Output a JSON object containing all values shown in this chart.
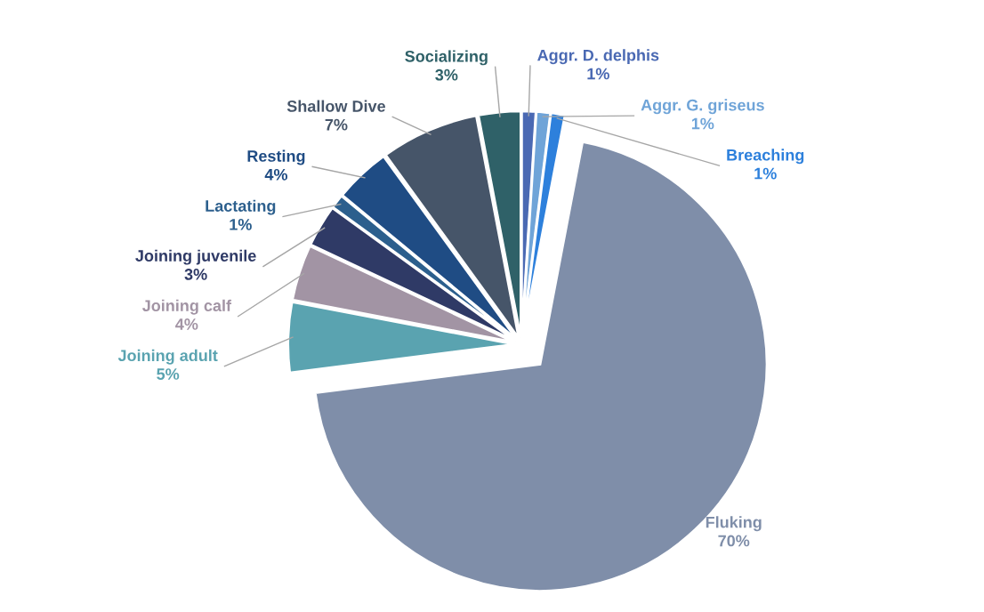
{
  "chart_data": {
    "type": "pie",
    "categories": [
      "Aggr. D. delphis",
      "Aggr. G. griseus",
      "Breaching",
      "Fluking",
      "Joining adult",
      "Joining calf",
      "Joining juvenile",
      "Lactating",
      "Resting",
      "Shallow Dive",
      "Socializing"
    ],
    "values": [
      1,
      1,
      1,
      70,
      5,
      4,
      3,
      1,
      4,
      7,
      3
    ],
    "colors": [
      "#4a69b3",
      "#6fa4d8",
      "#2d80dc",
      "#7f8ea9",
      "#5aa3b0",
      "#a294a4",
      "#2f3a66",
      "#2c5f8d",
      "#1f4c84",
      "#465569",
      "#2f6168"
    ],
    "value_labels": [
      "1%",
      "1%",
      "1%",
      "70%",
      "5%",
      "4%",
      "3%",
      "1%",
      "4%",
      "7%",
      "3%"
    ]
  }
}
